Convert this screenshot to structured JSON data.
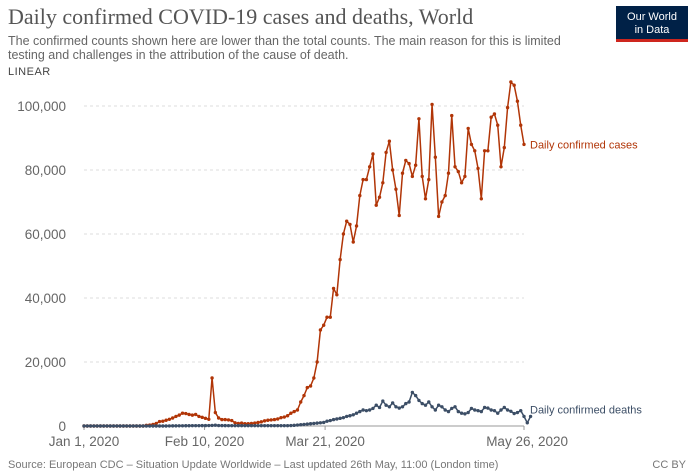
{
  "title": "Daily confirmed COVID-19 cases and deaths, World",
  "subtitle": "The confirmed counts shown here are lower than the total counts. The main reason for this is limited testing and challenges in the attribution of the cause of death.",
  "scale_toggle": "LINEAR",
  "logo": {
    "line1": "Our World",
    "line2": "in Data"
  },
  "footer": "Source: European CDC – Situation Update Worldwide – Last updated 26th May, 11:00 (London time)",
  "license": "CC BY",
  "colors": {
    "cases": "#b13507",
    "deaths": "#3c4e66",
    "grid": "#dddddd",
    "axis": "#999999"
  },
  "chart_data": {
    "type": "line",
    "xlabel": "",
    "ylabel": "",
    "x_start": "2020-01-01",
    "x_end": "2020-05-26",
    "x_ticks": [
      "Jan 1, 2020",
      "Feb 10, 2020",
      "Mar 21, 2020",
      "May 26, 2020"
    ],
    "ylim": [
      0,
      105000
    ],
    "y_ticks": [
      "0",
      "20,000",
      "40,000",
      "60,000",
      "80,000",
      "100,000"
    ],
    "y_tick_values": [
      0,
      20000,
      40000,
      60000,
      80000,
      100000
    ],
    "grid": true,
    "series": [
      {
        "name": "Daily confirmed cases",
        "color": "#b13507",
        "values": [
          0,
          0,
          0,
          0,
          0,
          0,
          0,
          0,
          0,
          0,
          0,
          0,
          0,
          0,
          0,
          0,
          0,
          0,
          0,
          200,
          300,
          500,
          800,
          1400,
          1500,
          1800,
          2100,
          2500,
          3000,
          3400,
          4000,
          3900,
          3600,
          3400,
          3600,
          3000,
          2700,
          2400,
          2100,
          15000,
          4200,
          2500,
          2000,
          2000,
          1900,
          1700,
          1000,
          800,
          900,
          700,
          700,
          800,
          900,
          1100,
          1300,
          1600,
          1800,
          1900,
          2000,
          2200,
          2600,
          2800,
          3200,
          4000,
          4500,
          5000,
          7500,
          9500,
          12000,
          12500,
          15000,
          20000,
          30000,
          31500,
          34000,
          34000,
          43000,
          41000,
          52000,
          60000,
          64000,
          63000,
          57500,
          62500,
          72000,
          77000,
          77000,
          81000,
          85000,
          69000,
          71500,
          76000,
          85500,
          89000,
          80000,
          74000,
          65800,
          79000,
          83000,
          82000,
          78000,
          81500,
          96000,
          78000,
          71000,
          77000,
          100500,
          84000,
          65500,
          70000,
          72000,
          79000,
          97000,
          81000,
          79500,
          76000,
          78000,
          93000,
          88000,
          86000,
          80500,
          71000,
          86000,
          86000,
          96500,
          97500,
          94000,
          81000,
          87000,
          99500,
          107500,
          106500,
          101500,
          94000,
          88000
        ]
      },
      {
        "name": "Daily confirmed deaths",
        "color": "#3c4e66",
        "values": [
          0,
          0,
          0,
          0,
          0,
          0,
          0,
          0,
          0,
          0,
          0,
          0,
          0,
          0,
          0,
          0,
          0,
          0,
          0,
          0,
          0,
          0,
          0,
          0,
          0,
          0,
          30,
          40,
          50,
          60,
          70,
          80,
          90,
          100,
          100,
          110,
          120,
          130,
          140,
          180,
          250,
          150,
          130,
          120,
          110,
          100,
          100,
          100,
          100,
          100,
          100,
          100,
          100,
          100,
          100,
          100,
          100,
          100,
          100,
          100,
          100,
          100,
          100,
          150,
          200,
          300,
          400,
          500,
          600,
          700,
          800,
          900,
          1000,
          1100,
          1500,
          1700,
          2000,
          2200,
          2400,
          2600,
          3000,
          3200,
          3500,
          4000,
          4500,
          5000,
          4800,
          5000,
          5500,
          6500,
          5800,
          7800,
          6500,
          6000,
          7200,
          6000,
          5600,
          6000,
          7000,
          7500,
          10500,
          9500,
          8000,
          7000,
          6500,
          7500,
          6000,
          5000,
          6500,
          6000,
          5000,
          4500,
          5500,
          6000,
          4500,
          4000,
          3800,
          4200,
          5500,
          5000,
          4800,
          4500,
          5800,
          5600,
          5000,
          4800,
          4000,
          5000,
          5800,
          5000,
          4600,
          3900,
          4200,
          4800,
          3000,
          1000,
          3000
        ]
      }
    ]
  }
}
